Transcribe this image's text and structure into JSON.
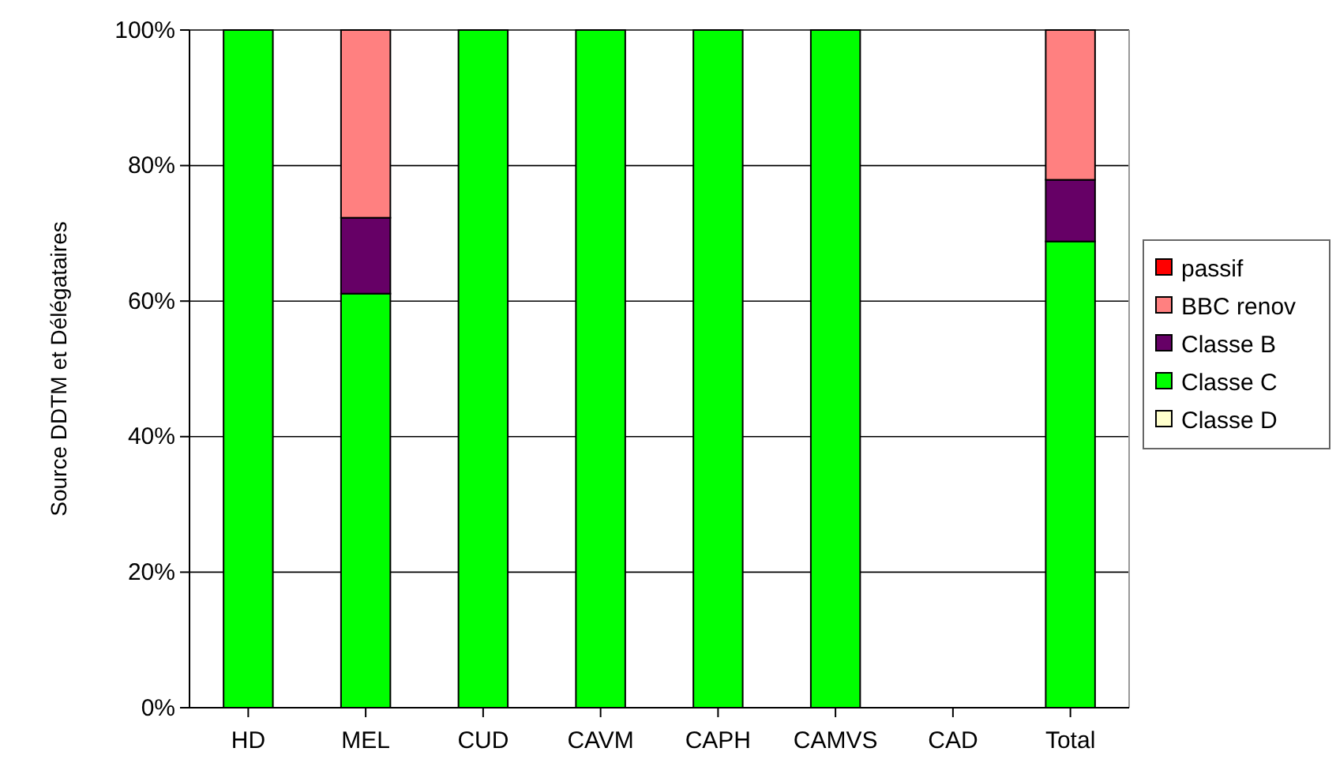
{
  "chart_data": {
    "type": "bar",
    "stacked": true,
    "ylabel": "Source DDTM et Délégataires",
    "categories": [
      "HD",
      "MEL",
      "CUD",
      "CAVM",
      "CAPH",
      "CAMVS",
      "CAD",
      "Total"
    ],
    "series": [
      {
        "name": "Classe D",
        "color": "#ffffcc",
        "values": [
          0,
          0,
          0,
          0,
          0,
          0,
          0,
          0
        ]
      },
      {
        "name": "Classe C",
        "color": "#00ff00",
        "values": [
          100,
          61.1,
          100,
          100,
          100,
          100,
          0,
          68.8
        ]
      },
      {
        "name": "Classe B",
        "color": "#660066",
        "values": [
          0,
          11.2,
          0,
          0,
          0,
          0,
          0,
          9.1
        ]
      },
      {
        "name": "BBC renov",
        "color": "#ff8080",
        "values": [
          0,
          27.7,
          0,
          0,
          0,
          0,
          0,
          22.1
        ]
      },
      {
        "name": "passif",
        "color": "#ff0000",
        "values": [
          0,
          0,
          0,
          0,
          0,
          0,
          0,
          0
        ]
      }
    ],
    "ylim": [
      0,
      100
    ],
    "yticks": [
      {
        "value": 0,
        "label": "0%"
      },
      {
        "value": 20,
        "label": "20%"
      },
      {
        "value": 40,
        "label": "40%"
      },
      {
        "value": 60,
        "label": "60%"
      },
      {
        "value": 80,
        "label": "80%"
      },
      {
        "value": 100,
        "label": "100%"
      }
    ],
    "grid": "y",
    "legend": "right"
  }
}
